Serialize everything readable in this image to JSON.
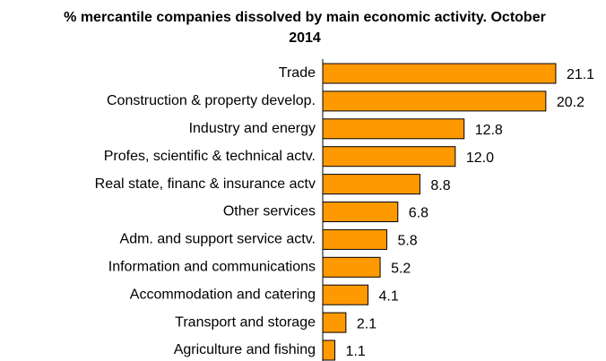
{
  "chart_data": {
    "type": "bar",
    "orientation": "horizontal",
    "title": "% mercantile companies dissolved by main economic activity. October 2014",
    "categories": [
      "Trade",
      "Construction & property develop.",
      "Industry and energy",
      "Profes, scientific & technical actv.",
      "Real state, financ & insurance actv",
      "Other services",
      "Adm. and support service actv.",
      "Information and communications",
      "Accommodation and catering",
      "Transport and storage",
      "Agriculture and fishing"
    ],
    "values": [
      21.1,
      20.2,
      12.8,
      12.0,
      8.8,
      6.8,
      5.8,
      5.2,
      4.1,
      2.1,
      1.1
    ],
    "value_labels": [
      "21.1",
      "20.2",
      "12.8",
      "12.0",
      "8.8",
      "6.8",
      "5.8",
      "5.2",
      "4.1",
      "2.1",
      "1.1"
    ],
    "color": "#ff9900",
    "xlim": [
      0,
      25
    ]
  }
}
